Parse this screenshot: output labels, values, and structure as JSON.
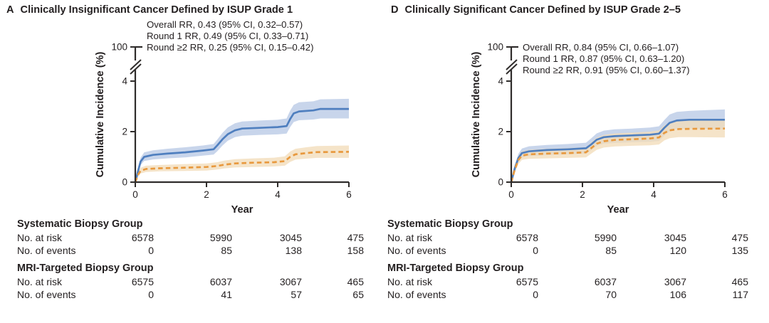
{
  "colors": {
    "systematic_line": "#4f7fbf",
    "systematic_band": "#b9c9e6",
    "mri_line": "#e8993e",
    "mri_band": "#f2ddba",
    "axis": "#2f2c2b",
    "text": "#231f20"
  },
  "chart_data": [
    {
      "type": "line",
      "panel_letter": "A",
      "title": "Clinically Insignificant Cancer Defined by ISUP Grade 1",
      "annotations": [
        "Overall RR, 0.43 (95% CI, 0.32–0.57)",
        "Round 1 RR, 0.49 (95% CI, 0.33–0.71)",
        "Round ≥2 RR, 0.25 (95% CI, 0.15–0.42)"
      ],
      "x_axis": {
        "label": "Year",
        "ticks": [
          "0",
          "2",
          "4",
          "6"
        ],
        "range": [
          0,
          6
        ]
      },
      "y_axis": {
        "label": "Cumulative Incidence (%)",
        "ticks_shown": [
          "100",
          "4",
          "2",
          "0"
        ],
        "axis_break": true,
        "plot_range": [
          0,
          4
        ]
      },
      "grid": false,
      "legend_position": "none",
      "series": [
        {
          "id": "systematic-biopsy",
          "name": "Systematic Biopsy Group",
          "line_style": "solid",
          "color": "#4f7fbf",
          "band_color": "#b9c9e6",
          "points": [
            [
              0,
              0,
              0,
              0
            ],
            [
              0.08,
              0.45,
              0.33,
              0.57
            ],
            [
              0.15,
              0.82,
              0.68,
              0.97
            ],
            [
              0.25,
              1.0,
              0.84,
              1.18
            ],
            [
              0.5,
              1.08,
              0.9,
              1.26
            ],
            [
              0.9,
              1.13,
              0.94,
              1.32
            ],
            [
              1.4,
              1.18,
              0.98,
              1.38
            ],
            [
              1.9,
              1.25,
              1.05,
              1.45
            ],
            [
              2.2,
              1.3,
              1.09,
              1.51
            ],
            [
              2.3,
              1.45,
              1.22,
              1.68
            ],
            [
              2.45,
              1.7,
              1.45,
              1.95
            ],
            [
              2.6,
              1.9,
              1.64,
              2.17
            ],
            [
              2.8,
              2.05,
              1.78,
              2.33
            ],
            [
              3.0,
              2.12,
              1.84,
              2.4
            ],
            [
              3.5,
              2.15,
              1.87,
              2.44
            ],
            [
              4.0,
              2.18,
              1.89,
              2.47
            ],
            [
              4.25,
              2.22,
              1.92,
              2.52
            ],
            [
              4.35,
              2.5,
              2.18,
              2.83
            ],
            [
              4.45,
              2.72,
              2.38,
              3.06
            ],
            [
              4.6,
              2.8,
              2.45,
              3.16
            ],
            [
              5.0,
              2.84,
              2.48,
              3.2
            ],
            [
              5.2,
              2.9,
              2.52,
              3.28
            ],
            [
              6,
              2.9,
              2.52,
              3.3
            ]
          ]
        },
        {
          "id": "mri-targeted-biopsy",
          "name": "MRI-Targeted Biopsy Group",
          "line_style": "dashed",
          "color": "#e8993e",
          "band_color": "#f2ddba",
          "points": [
            [
              0,
              0,
              0,
              0
            ],
            [
              0.08,
              0.3,
              0.21,
              0.4
            ],
            [
              0.15,
              0.45,
              0.34,
              0.57
            ],
            [
              0.3,
              0.52,
              0.4,
              0.65
            ],
            [
              0.7,
              0.55,
              0.43,
              0.68
            ],
            [
              1.3,
              0.57,
              0.44,
              0.71
            ],
            [
              2.0,
              0.6,
              0.46,
              0.74
            ],
            [
              2.3,
              0.64,
              0.5,
              0.79
            ],
            [
              2.5,
              0.69,
              0.54,
              0.85
            ],
            [
              2.8,
              0.74,
              0.58,
              0.91
            ],
            [
              3.3,
              0.77,
              0.6,
              0.94
            ],
            [
              3.9,
              0.79,
              0.62,
              0.97
            ],
            [
              4.2,
              0.83,
              0.65,
              1.02
            ],
            [
              4.35,
              1.0,
              0.8,
              1.21
            ],
            [
              4.5,
              1.1,
              0.89,
              1.32
            ],
            [
              4.8,
              1.15,
              0.93,
              1.38
            ],
            [
              5.1,
              1.19,
              0.96,
              1.43
            ],
            [
              6,
              1.2,
              0.96,
              1.45
            ]
          ]
        }
      ],
      "at_risk_table": {
        "groups": [
          {
            "name": "Systematic Biopsy Group",
            "rows": [
              {
                "label": "No. at risk",
                "values": [
                  "6578",
                  "5990",
                  "3045",
                  "475"
                ]
              },
              {
                "label": "No. of events",
                "values": [
                  "0",
                  "85",
                  "138",
                  "158"
                ]
              }
            ]
          },
          {
            "name": "MRI-Targeted Biopsy Group",
            "rows": [
              {
                "label": "No. at risk",
                "values": [
                  "6575",
                  "6037",
                  "3067",
                  "465"
                ]
              },
              {
                "label": "No. of events",
                "values": [
                  "0",
                  "41",
                  "57",
                  "65"
                ]
              }
            ]
          }
        ]
      }
    },
    {
      "type": "line",
      "panel_letter": "D",
      "title": "Clinically Significant Cancer Defined by ISUP Grade 2–5",
      "annotations": [
        "Overall RR, 0.84 (95% CI, 0.66–1.07)",
        "Round 1 RR, 0.87 (95% CI, 0.63–1.20)",
        "Round ≥2 RR, 0.91 (95% CI, 0.60–1.37)"
      ],
      "x_axis": {
        "label": "Year",
        "ticks": [
          "0",
          "2",
          "4",
          "6"
        ],
        "range": [
          0,
          6
        ]
      },
      "y_axis": {
        "label": "Cumulative Incidence (%)",
        "ticks_shown": [
          "100",
          "4",
          "2",
          "0"
        ],
        "axis_break": true,
        "plot_range": [
          0,
          4
        ]
      },
      "grid": false,
      "legend_position": "none",
      "series": [
        {
          "id": "systematic-biopsy",
          "name": "Systematic Biopsy Group",
          "line_style": "solid",
          "color": "#4f7fbf",
          "band_color": "#b9c9e6",
          "points": [
            [
              0,
              0,
              0,
              0
            ],
            [
              0.1,
              0.55,
              0.42,
              0.68
            ],
            [
              0.2,
              0.95,
              0.79,
              1.12
            ],
            [
              0.3,
              1.15,
              0.97,
              1.33
            ],
            [
              0.5,
              1.22,
              1.03,
              1.42
            ],
            [
              1.0,
              1.27,
              1.07,
              1.47
            ],
            [
              1.6,
              1.3,
              1.1,
              1.51
            ],
            [
              2.1,
              1.34,
              1.13,
              1.56
            ],
            [
              2.25,
              1.5,
              1.27,
              1.74
            ],
            [
              2.4,
              1.68,
              1.43,
              1.93
            ],
            [
              2.6,
              1.78,
              1.52,
              2.04
            ],
            [
              2.9,
              1.82,
              1.55,
              2.09
            ],
            [
              3.4,
              1.85,
              1.58,
              2.12
            ],
            [
              3.9,
              1.88,
              1.6,
              2.16
            ],
            [
              4.15,
              1.92,
              1.63,
              2.21
            ],
            [
              4.3,
              2.15,
              1.84,
              2.46
            ],
            [
              4.45,
              2.35,
              2.02,
              2.68
            ],
            [
              4.65,
              2.44,
              2.1,
              2.78
            ],
            [
              5.0,
              2.47,
              2.12,
              2.82
            ],
            [
              5.5,
              2.47,
              2.1,
              2.85
            ],
            [
              6,
              2.47,
              2.08,
              2.88
            ]
          ]
        },
        {
          "id": "mri-targeted-biopsy",
          "name": "MRI-Targeted Biopsy Group",
          "line_style": "dashed",
          "color": "#e8993e",
          "band_color": "#f2ddba",
          "points": [
            [
              0,
              0,
              0,
              0
            ],
            [
              0.1,
              0.5,
              0.38,
              0.62
            ],
            [
              0.2,
              0.88,
              0.72,
              1.04
            ],
            [
              0.3,
              1.05,
              0.88,
              1.22
            ],
            [
              0.5,
              1.1,
              0.92,
              1.28
            ],
            [
              1.0,
              1.13,
              0.94,
              1.32
            ],
            [
              1.6,
              1.15,
              0.96,
              1.35
            ],
            [
              2.1,
              1.18,
              0.98,
              1.38
            ],
            [
              2.25,
              1.35,
              1.13,
              1.58
            ],
            [
              2.4,
              1.52,
              1.28,
              1.76
            ],
            [
              2.6,
              1.62,
              1.37,
              1.87
            ],
            [
              2.9,
              1.67,
              1.41,
              1.93
            ],
            [
              3.4,
              1.7,
              1.44,
              1.96
            ],
            [
              3.9,
              1.73,
              1.46,
              2.0
            ],
            [
              4.15,
              1.77,
              1.49,
              2.05
            ],
            [
              4.3,
              1.95,
              1.65,
              2.25
            ],
            [
              4.45,
              2.05,
              1.74,
              2.36
            ],
            [
              4.7,
              2.1,
              1.78,
              2.42
            ],
            [
              5.0,
              2.11,
              1.78,
              2.44
            ],
            [
              6,
              2.12,
              1.77,
              2.47
            ]
          ]
        }
      ],
      "at_risk_table": {
        "groups": [
          {
            "name": "Systematic Biopsy Group",
            "rows": [
              {
                "label": "No. at risk",
                "values": [
                  "6578",
                  "5990",
                  "3045",
                  "475"
                ]
              },
              {
                "label": "No. of events",
                "values": [
                  "0",
                  "85",
                  "120",
                  "135"
                ]
              }
            ]
          },
          {
            "name": "MRI-Targeted Biopsy Group",
            "rows": [
              {
                "label": "No. at risk",
                "values": [
                  "6575",
                  "6037",
                  "3067",
                  "465"
                ]
              },
              {
                "label": "No. of events",
                "values": [
                  "0",
                  "70",
                  "106",
                  "117"
                ]
              }
            ]
          }
        ]
      }
    }
  ]
}
